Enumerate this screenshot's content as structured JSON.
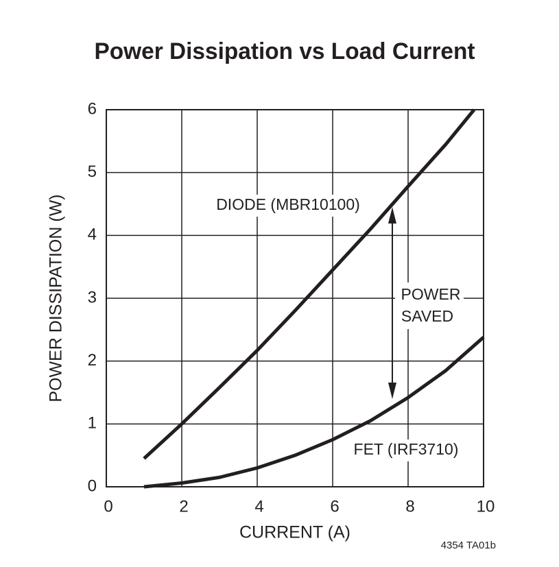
{
  "chart_data": {
    "type": "line",
    "title": "Power Dissipation vs Load Current",
    "x_label": "CURRENT (A)",
    "y_label": "POWER DISSIPATION (W)",
    "xlim": [
      0,
      10
    ],
    "xticks": [
      0,
      2,
      4,
      6,
      8,
      10
    ],
    "ylim": [
      0,
      6
    ],
    "yticks": [
      0,
      1,
      2,
      3,
      4,
      5,
      6
    ],
    "grid": true,
    "series": [
      {
        "name": "DIODE (MBR10100)",
        "color": "#231f20",
        "x": [
          1,
          2,
          3,
          4,
          5,
          6,
          7,
          8,
          9,
          9.75
        ],
        "values": [
          0.45,
          1.0,
          1.58,
          2.17,
          2.8,
          3.45,
          4.1,
          4.78,
          5.45,
          6.0
        ]
      },
      {
        "name": "FET (IRF3710)",
        "color": "#231f20",
        "x": [
          1,
          2,
          3,
          4,
          5,
          6,
          7,
          8,
          9,
          10
        ],
        "values": [
          0,
          0.06,
          0.15,
          0.3,
          0.5,
          0.75,
          1.05,
          1.42,
          1.85,
          2.38
        ]
      }
    ],
    "annotations": [
      "POWER",
      "SAVED"
    ],
    "footnote": "4354 TA01b"
  }
}
